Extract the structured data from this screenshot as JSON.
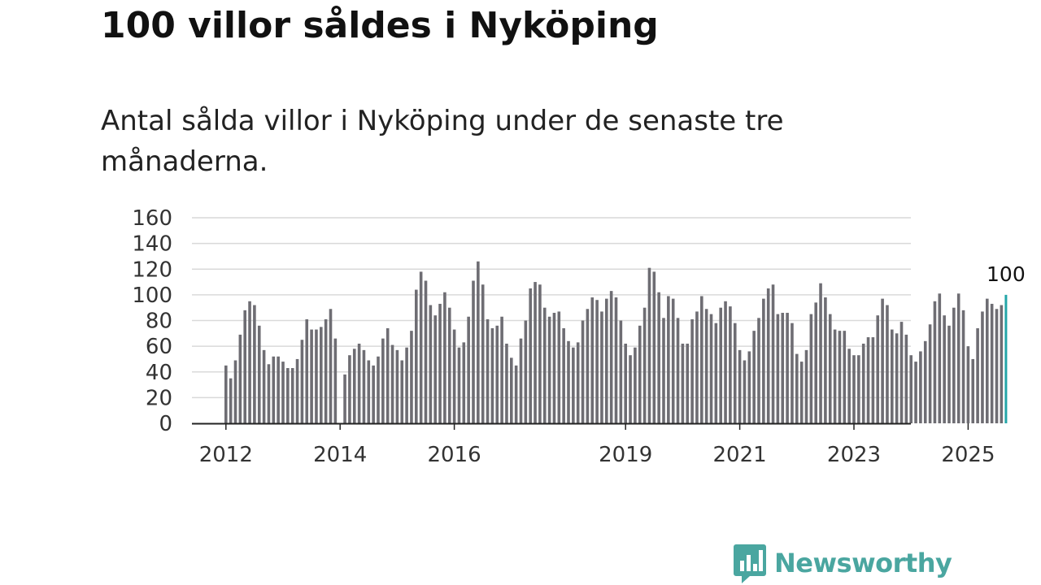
{
  "title": "100 villor såldes i Nyköping",
  "subtitle": "Antal sålda villor i Nyköping under de senaste tre månaderna.",
  "brand": {
    "name": "Newsworthy",
    "color": "#4aa6a0"
  },
  "chart_data": {
    "type": "bar",
    "ylim": [
      0,
      160
    ],
    "yticks": [
      "0",
      "20",
      "40",
      "60",
      "80",
      "100",
      "120",
      "140",
      "160"
    ],
    "xticks": [
      {
        "label": "2012",
        "index": 0
      },
      {
        "label": "2014",
        "index": 24
      },
      {
        "label": "2016",
        "index": 48
      },
      {
        "label": "2019",
        "index": 84
      },
      {
        "label": "2021",
        "index": 108
      },
      {
        "label": "2023",
        "index": 132
      },
      {
        "label": "2025",
        "index": 156
      }
    ],
    "bar_color": "#6e6d73",
    "highlight_color": "#24a6a8",
    "highlight_label": "100",
    "values": [
      45,
      35,
      49,
      69,
      88,
      95,
      92,
      76,
      57,
      46,
      52,
      52,
      48,
      43,
      43,
      50,
      65,
      81,
      73,
      73,
      75,
      81,
      89,
      66,
      0,
      38,
      53,
      58,
      62,
      57,
      49,
      45,
      52,
      66,
      74,
      61,
      57,
      49,
      59,
      72,
      104,
      118,
      111,
      92,
      84,
      93,
      102,
      90,
      73,
      59,
      63,
      83,
      111,
      126,
      108,
      81,
      74,
      76,
      83,
      62,
      51,
      45,
      66,
      80,
      105,
      110,
      108,
      90,
      83,
      86,
      87,
      74,
      64,
      59,
      63,
      80,
      89,
      98,
      96,
      87,
      97,
      103,
      98,
      80,
      62,
      53,
      59,
      76,
      90,
      121,
      118,
      102,
      82,
      99,
      97,
      82,
      62,
      62,
      81,
      87,
      99,
      89,
      85,
      78,
      90,
      95,
      91,
      78,
      57,
      49,
      56,
      72,
      82,
      97,
      105,
      108,
      85,
      86,
      86,
      78,
      54,
      48,
      57,
      85,
      94,
      109,
      98,
      85,
      73,
      72,
      72,
      58,
      53,
      53,
      62,
      67,
      67,
      84,
      97,
      92,
      73,
      70,
      79,
      69,
      53,
      48,
      56,
      64,
      77,
      95,
      101,
      84,
      76,
      90,
      101,
      88,
      60,
      50,
      74,
      87,
      97,
      93,
      89,
      92,
      100
    ]
  }
}
